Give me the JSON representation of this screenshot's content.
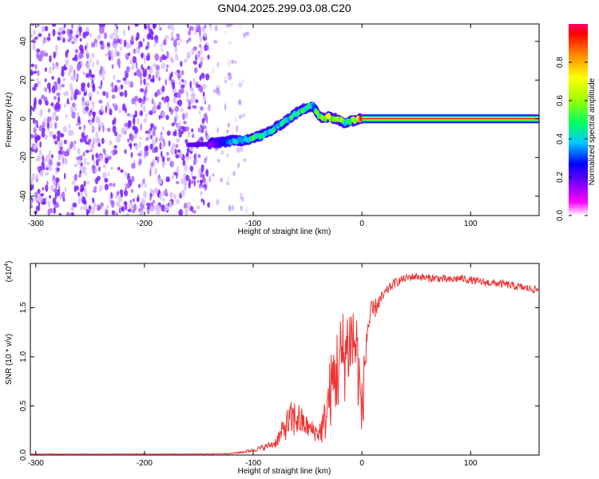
{
  "title": "GN04.2025.299.03.08.C20",
  "chart_data": [
    {
      "type": "heatmap",
      "xlabel": "Height of straight line (km)",
      "ylabel": "Frequency (Hz)",
      "xlim": [
        -305,
        163
      ],
      "ylim": [
        -50,
        49
      ],
      "xticks": [
        -300,
        -200,
        -100,
        0,
        100
      ],
      "xtick_labels": [
        "-300",
        "-200",
        "-100",
        "0",
        "100"
      ],
      "yticks": [
        -40,
        -20,
        0,
        20,
        40
      ],
      "ytick_labels": [
        "-40",
        "-20",
        "0",
        "20",
        "40"
      ],
      "ridge": {
        "x": [
          -140,
          -130,
          -120,
          -110,
          -100,
          -90,
          -80,
          -70,
          -60,
          -50,
          -45,
          -40,
          -35,
          -30,
          -25,
          -20,
          -15,
          -10,
          -5,
          0,
          20,
          60,
          100,
          140,
          163
        ],
        "y": [
          -13,
          -12,
          -11.5,
          -11,
          -10,
          -8,
          -5,
          -1,
          3,
          6,
          7,
          2,
          0,
          1,
          0,
          -1,
          -2,
          -1,
          -0.5,
          0,
          0,
          0,
          0,
          0,
          0
        ],
        "amplitude": [
          0.15,
          0.25,
          0.35,
          0.4,
          0.45,
          0.45,
          0.4,
          0.4,
          0.45,
          0.45,
          0.35,
          0.5,
          0.6,
          0.65,
          0.55,
          0.6,
          0.45,
          0.5,
          0.65,
          0.95,
          0.95,
          0.95,
          0.95,
          0.95,
          0.95
        ]
      },
      "noise_region_x": [
        -305,
        -105
      ],
      "colorbar": {
        "label": "Normalized spectral amplitude",
        "range": [
          0,
          1
        ],
        "ticks": [
          0.0,
          0.2,
          0.4,
          0.6,
          0.8
        ],
        "tick_labels": [
          "0.0",
          "0.2",
          "0.4",
          "0.6",
          "0.8"
        ],
        "colors": [
          "#ffffff",
          "#e6ccff",
          "#b366ff",
          "#7a00ff",
          "#0000ff",
          "#00c8ff",
          "#00ff66",
          "#99ff00",
          "#ffff00",
          "#ff8800",
          "#ff0000",
          "#ff00ff"
        ]
      }
    },
    {
      "type": "line",
      "xlabel": "Height of straight line (km)",
      "ylabel": "SNR (10 * v/v)",
      "multiplier_label": "(x10",
      "multiplier_exp": "4",
      "multiplier_close": ")",
      "xlim": [
        -305,
        163
      ],
      "ylim": [
        0,
        1.95
      ],
      "xticks": [
        -300,
        -200,
        -100,
        0,
        100
      ],
      "xtick_labels": [
        "-300",
        "-200",
        "-100",
        "0",
        "100"
      ],
      "yticks": [
        0.0,
        0.5,
        1.0,
        1.5
      ],
      "ytick_labels": [
        "0.0",
        "0.5",
        "1.0",
        "1.5"
      ],
      "line_color": "#ee3333",
      "series": [
        {
          "name": "SNR",
          "x": [
            -305,
            -250,
            -200,
            -150,
            -120,
            -110,
            -100,
            -90,
            -80,
            -75,
            -70,
            -65,
            -60,
            -55,
            -50,
            -45,
            -40,
            -35,
            -30,
            -25,
            -20,
            -15,
            -10,
            -5,
            0,
            5,
            10,
            15,
            20,
            25,
            30,
            40,
            50,
            60,
            70,
            80,
            90,
            100,
            110,
            120,
            130,
            140,
            150,
            163
          ],
          "y": [
            0.01,
            0.01,
            0.01,
            0.01,
            0.015,
            0.03,
            0.05,
            0.08,
            0.12,
            0.2,
            0.3,
            0.35,
            0.38,
            0.33,
            0.28,
            0.25,
            0.22,
            0.3,
            0.6,
            0.8,
            0.95,
            1.05,
            1.2,
            1.1,
            0.4,
            1.3,
            1.45,
            1.55,
            1.62,
            1.7,
            1.75,
            1.8,
            1.82,
            1.8,
            1.8,
            1.78,
            1.8,
            1.78,
            1.76,
            1.75,
            1.74,
            1.72,
            1.7,
            1.68
          ],
          "noise_amplitude": [
            0.003,
            0.003,
            0.003,
            0.003,
            0.006,
            0.01,
            0.02,
            0.03,
            0.05,
            0.1,
            0.15,
            0.2,
            0.2,
            0.15,
            0.1,
            0.1,
            0.1,
            0.2,
            0.35,
            0.45,
            0.5,
            0.5,
            0.45,
            0.45,
            0.35,
            0.25,
            0.12,
            0.08,
            0.06,
            0.05,
            0.05,
            0.04,
            0.04,
            0.04,
            0.04,
            0.04,
            0.04,
            0.04,
            0.04,
            0.04,
            0.04,
            0.04,
            0.04,
            0.04
          ]
        }
      ]
    }
  ]
}
